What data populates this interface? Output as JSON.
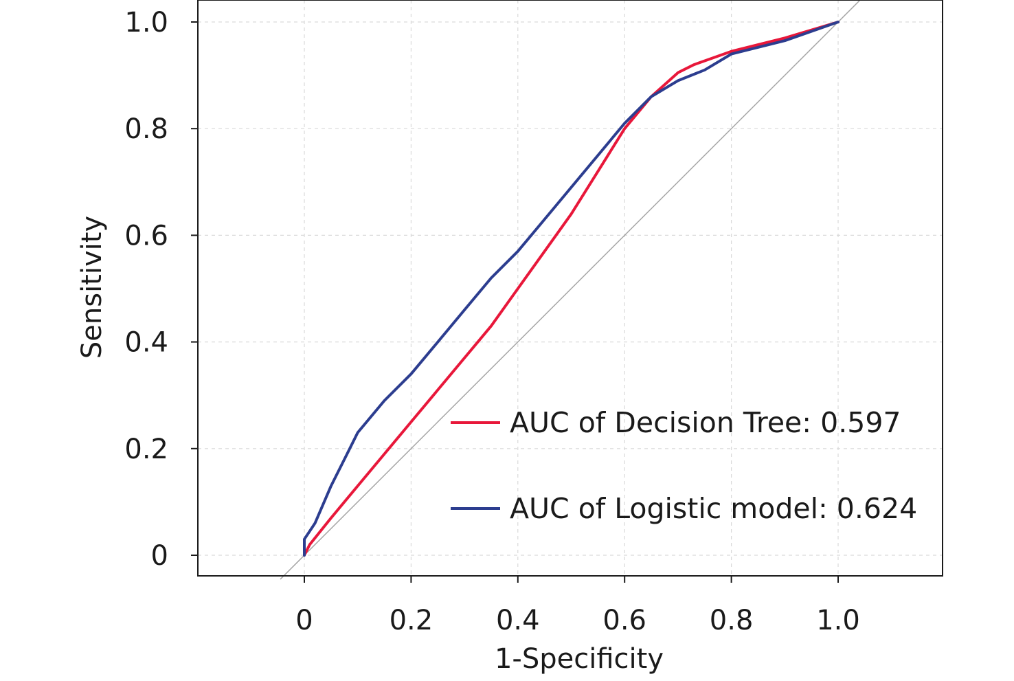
{
  "chart_data": {
    "type": "line",
    "title": "",
    "xlabel": "1-Specificity",
    "ylabel": "Sensitivity",
    "xlim": [
      -0.2,
      1.2
    ],
    "ylim": [
      -0.04,
      1.04
    ],
    "x_ticks": [
      0,
      0.2,
      0.4,
      0.6,
      0.8,
      1.0
    ],
    "x_tick_labels": [
      "0",
      "0.2",
      "0.4",
      "0.6",
      "0.8",
      "1.0"
    ],
    "y_ticks": [
      0,
      0.2,
      0.4,
      0.6,
      0.8,
      1.0
    ],
    "y_tick_labels": [
      "0",
      "0.2",
      "0.4",
      "0.6",
      "0.8",
      "1.0"
    ],
    "grid": true,
    "legend_position": "bottom-right",
    "reference_line": {
      "x": [
        -0.045,
        1.04
      ],
      "y": [
        -0.045,
        1.04
      ],
      "color": "#a6a6a6"
    },
    "series": [
      {
        "name": "AUC of Decision Tree: 0.597",
        "color": "#e8173a",
        "x": [
          0,
          0.01,
          0.05,
          0.1,
          0.15,
          0.2,
          0.25,
          0.3,
          0.35,
          0.4,
          0.45,
          0.5,
          0.55,
          0.6,
          0.65,
          0.7,
          0.73,
          0.8,
          0.9,
          1.0
        ],
        "y": [
          0,
          0.02,
          0.07,
          0.13,
          0.19,
          0.25,
          0.31,
          0.37,
          0.43,
          0.5,
          0.57,
          0.64,
          0.72,
          0.8,
          0.86,
          0.905,
          0.92,
          0.945,
          0.97,
          1.0
        ]
      },
      {
        "name": "AUC of Logistic model: 0.624",
        "color": "#2c3d8f",
        "x": [
          0,
          0,
          0.02,
          0.05,
          0.08,
          0.1,
          0.15,
          0.2,
          0.25,
          0.3,
          0.35,
          0.4,
          0.45,
          0.5,
          0.55,
          0.6,
          0.65,
          0.7,
          0.75,
          0.8,
          0.9,
          1.0
        ],
        "y": [
          0,
          0.03,
          0.06,
          0.13,
          0.19,
          0.23,
          0.29,
          0.34,
          0.4,
          0.46,
          0.52,
          0.57,
          0.63,
          0.69,
          0.75,
          0.81,
          0.86,
          0.89,
          0.91,
          0.94,
          0.965,
          1.0
        ]
      }
    ]
  }
}
